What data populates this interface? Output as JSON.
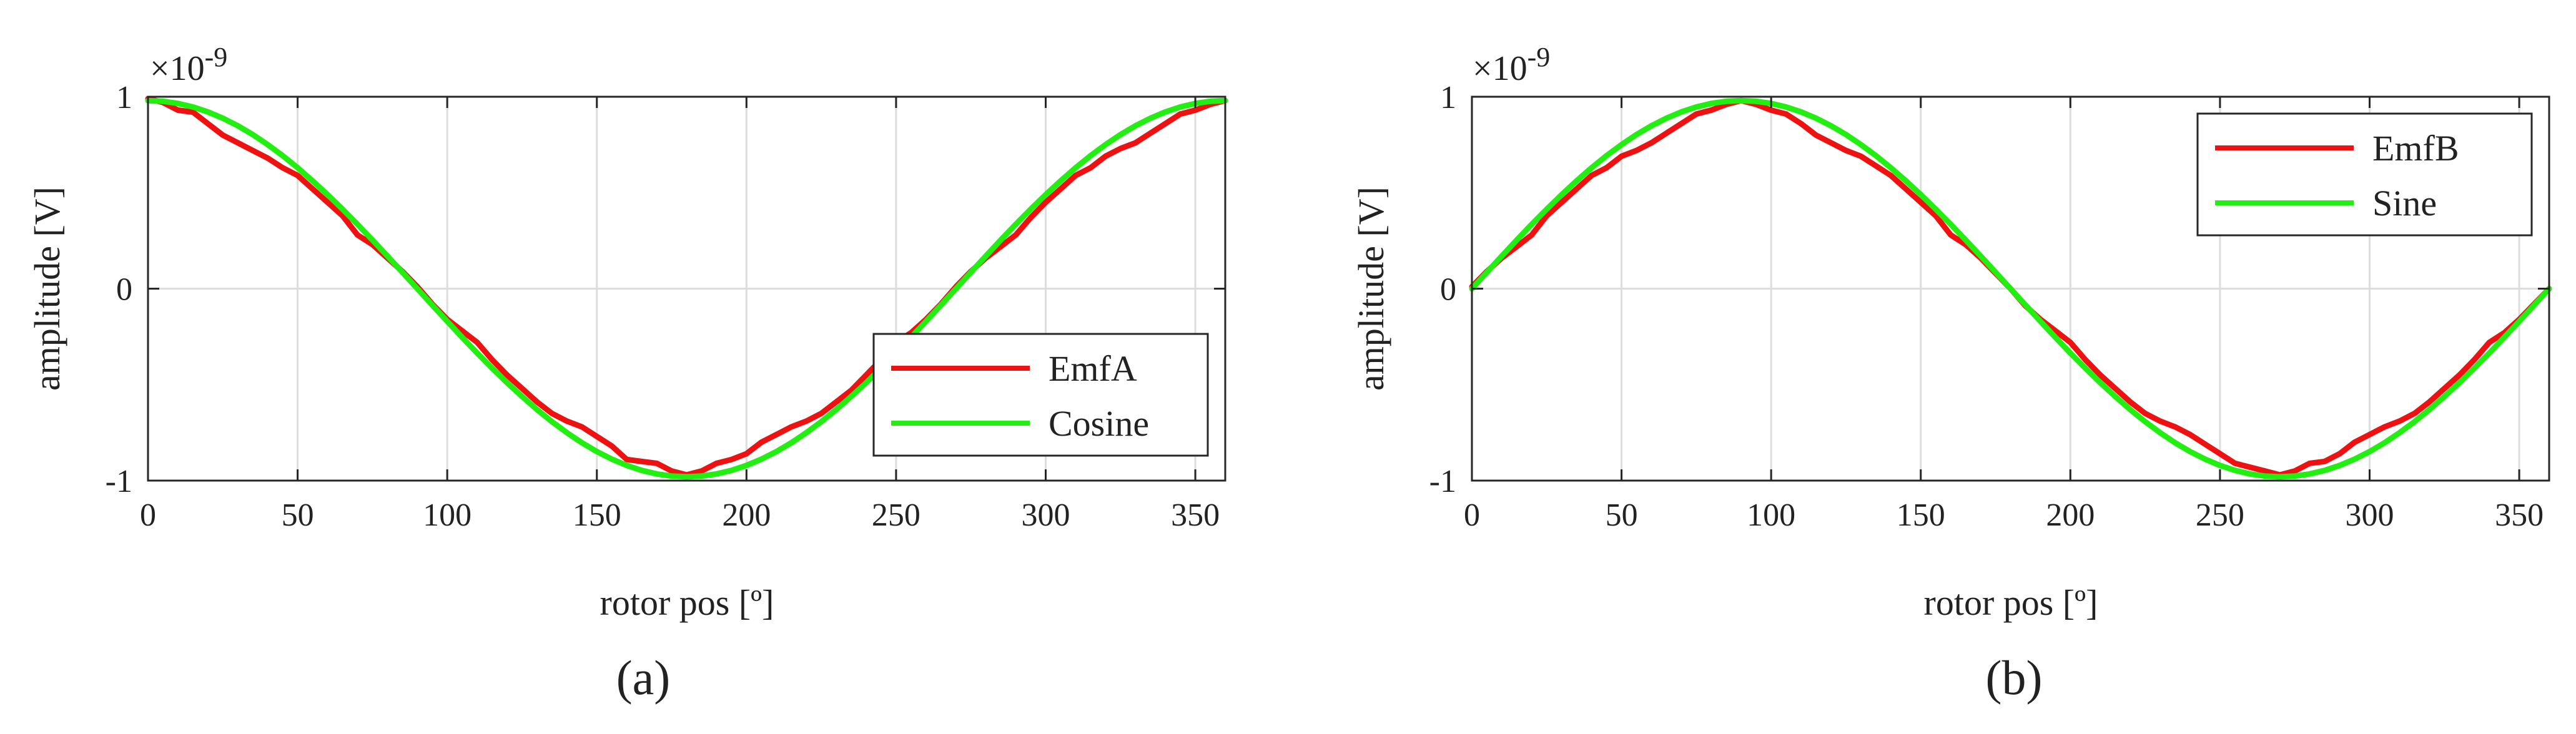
{
  "chart_data": [
    {
      "type": "line",
      "panel_label": "(a)",
      "xlabel": "rotor pos [º]",
      "ylabel": "amplitude [V]",
      "xlim": [
        0,
        360
      ],
      "ylim": [
        -1,
        1
      ],
      "y_multiplier": "×10",
      "y_multiplier_exp": "-9",
      "xticks": [
        0,
        50,
        100,
        150,
        200,
        250,
        300,
        350
      ],
      "yticks": [
        -1,
        0,
        1
      ],
      "ytick_labels": [
        "-1",
        "0",
        "1"
      ],
      "grid": true,
      "legend_position": "bottom-right",
      "series": [
        {
          "name": "EmfA",
          "color": "#ee1111",
          "x": [
            0,
            5,
            10,
            15,
            20,
            25,
            30,
            35,
            40,
            45,
            50,
            55,
            60,
            65,
            70,
            75,
            80,
            85,
            90,
            95,
            100,
            105,
            110,
            115,
            120,
            125,
            130,
            135,
            140,
            145,
            150,
            155,
            160,
            165,
            170,
            175,
            180,
            185,
            190,
            195,
            200,
            205,
            210,
            215,
            220,
            225,
            230,
            235,
            240,
            245,
            250,
            255,
            260,
            265,
            270,
            275,
            280,
            285,
            290,
            295,
            300,
            305,
            310,
            315,
            320,
            325,
            330,
            335,
            340,
            345,
            350,
            355,
            360
          ],
          "y": [
            0.99,
            0.97,
            0.93,
            0.92,
            0.86,
            0.8,
            0.76,
            0.72,
            0.68,
            0.63,
            0.59,
            0.52,
            0.45,
            0.38,
            0.28,
            0.23,
            0.16,
            0.09,
            0.01,
            -0.08,
            -0.16,
            -0.22,
            -0.28,
            -0.37,
            -0.45,
            -0.52,
            -0.59,
            -0.65,
            -0.69,
            -0.72,
            -0.77,
            -0.82,
            -0.89,
            -0.9,
            -0.91,
            -0.95,
            -0.97,
            -0.95,
            -0.91,
            -0.89,
            -0.86,
            -0.8,
            -0.76,
            -0.72,
            -0.69,
            -0.65,
            -0.59,
            -0.53,
            -0.45,
            -0.37,
            -0.28,
            -0.23,
            -0.16,
            -0.08,
            0.01,
            0.09,
            0.16,
            0.22,
            0.28,
            0.37,
            0.45,
            0.52,
            0.59,
            0.63,
            0.69,
            0.73,
            0.76,
            0.81,
            0.86,
            0.91,
            0.93,
            0.96,
            0.98
          ]
        },
        {
          "name": "Cosine",
          "color": "#22ee11",
          "function": "cos",
          "x_start": 0,
          "x_end": 360,
          "x_step": 5,
          "amplitude": 0.98
        }
      ]
    },
    {
      "type": "line",
      "panel_label": "(b)",
      "xlabel": "rotor pos [º]",
      "ylabel": "amplitude [V]",
      "xlim": [
        0,
        360
      ],
      "ylim": [
        -1,
        1
      ],
      "y_multiplier": "×10",
      "y_multiplier_exp": "-9",
      "xticks": [
        0,
        50,
        100,
        150,
        200,
        250,
        300,
        350
      ],
      "yticks": [
        -1,
        0,
        1
      ],
      "ytick_labels": [
        "-1",
        "0",
        "1"
      ],
      "grid": true,
      "legend_position": "top-right",
      "series": [
        {
          "name": "EmfB",
          "color": "#ee1111",
          "x": [
            0,
            5,
            10,
            15,
            20,
            25,
            30,
            35,
            40,
            45,
            50,
            55,
            60,
            65,
            70,
            75,
            80,
            85,
            90,
            95,
            100,
            105,
            110,
            115,
            120,
            125,
            130,
            135,
            140,
            145,
            150,
            155,
            160,
            165,
            170,
            175,
            180,
            185,
            190,
            195,
            200,
            205,
            210,
            215,
            220,
            225,
            230,
            235,
            240,
            245,
            250,
            255,
            260,
            265,
            270,
            275,
            280,
            285,
            290,
            295,
            300,
            305,
            310,
            315,
            320,
            325,
            330,
            335,
            340,
            345,
            350,
            355,
            360
          ],
          "y": [
            0.01,
            0.09,
            0.16,
            0.22,
            0.28,
            0.38,
            0.45,
            0.52,
            0.59,
            0.63,
            0.69,
            0.72,
            0.76,
            0.81,
            0.86,
            0.91,
            0.93,
            0.96,
            0.98,
            0.96,
            0.93,
            0.91,
            0.86,
            0.8,
            0.76,
            0.72,
            0.69,
            0.64,
            0.59,
            0.52,
            0.45,
            0.38,
            0.28,
            0.23,
            0.16,
            0.08,
            0.0,
            -0.09,
            -0.16,
            -0.22,
            -0.28,
            -0.37,
            -0.45,
            -0.52,
            -0.59,
            -0.65,
            -0.69,
            -0.72,
            -0.76,
            -0.81,
            -0.86,
            -0.91,
            -0.93,
            -0.95,
            -0.97,
            -0.95,
            -0.91,
            -0.9,
            -0.86,
            -0.8,
            -0.76,
            -0.72,
            -0.69,
            -0.65,
            -0.59,
            -0.52,
            -0.45,
            -0.37,
            -0.28,
            -0.23,
            -0.16,
            -0.08,
            0.0
          ]
        },
        {
          "name": "Sine",
          "color": "#22ee11",
          "function": "sin",
          "x_start": 0,
          "x_end": 360,
          "x_step": 5,
          "amplitude": 0.98
        }
      ]
    }
  ]
}
